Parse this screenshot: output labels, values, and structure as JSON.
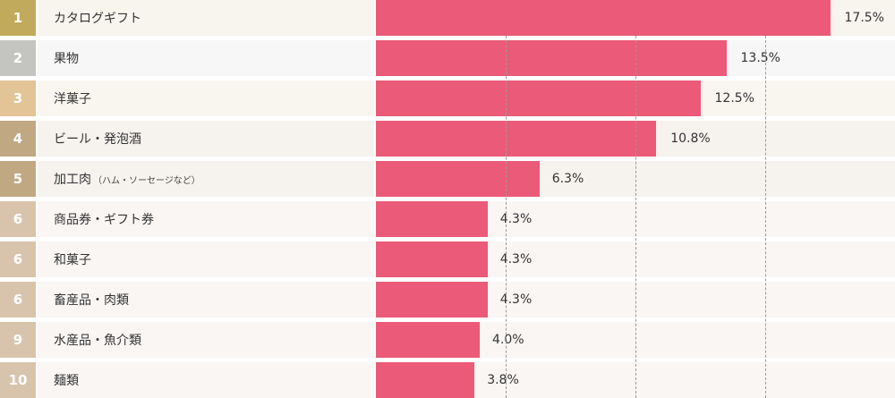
{
  "chart_data": {
    "type": "bar",
    "orientation": "horizontal",
    "ranks": [
      "1",
      "2",
      "3",
      "4",
      "5",
      "6",
      "6",
      "6",
      "9",
      "10"
    ],
    "categories": [
      "カタログギフト",
      "果物",
      "洋菓子",
      "ビール・発泡酒",
      "加工肉",
      "商品券・ギフト券",
      "和菓子",
      "畜産品・肉類",
      "水産品・魚介類",
      "麺類"
    ],
    "category_notes": [
      "",
      "",
      "",
      "",
      "（ハム・ソーセージなど）",
      "",
      "",
      "",
      "",
      ""
    ],
    "values": [
      17.5,
      13.5,
      12.5,
      10.8,
      6.3,
      4.3,
      4.3,
      4.3,
      4.0,
      3.8
    ],
    "value_labels": [
      "17.5%",
      "13.5%",
      "12.5%",
      "10.8%",
      "6.3%",
      "4.3%",
      "4.3%",
      "4.3%",
      "4.0%",
      "3.8%"
    ],
    "value_unit": "%",
    "xlim": [
      0,
      20
    ],
    "gridlines": [
      5,
      10,
      15
    ],
    "grid": true,
    "colors": {
      "bar": "#eb5a78",
      "rank_badges": [
        "#c2aa5c",
        "#c4c4c0",
        "#e2c496",
        "#c0a883",
        "#c0a883",
        "#d8c4ad",
        "#d8c4ad",
        "#d8c4ad",
        "#d8c4ad",
        "#d8c4ad"
      ],
      "row_backgrounds": [
        "#f8f5ee",
        "#f7f7f7",
        "#f9f6f0",
        "#f6f3ef",
        "#f6f3ef",
        "#f9f6f4",
        "#f9f6f4",
        "#f9f6f4",
        "#f9f6f4",
        "#f9f6f4"
      ]
    }
  }
}
